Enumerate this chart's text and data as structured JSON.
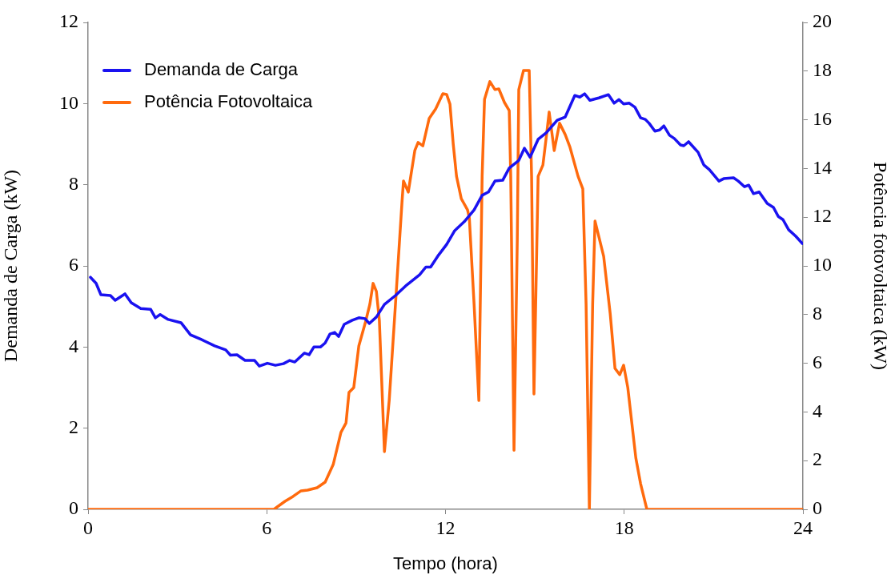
{
  "chart_data": {
    "type": "line",
    "xlabel": "Tempo (hora)",
    "ylabel": "Demanda de Carga (kW)",
    "y2label": "Potência fotovoltaica (kW)",
    "xlim": [
      0,
      24
    ],
    "xticks": [
      0,
      6,
      12,
      18,
      24
    ],
    "ylim": [
      0,
      12
    ],
    "yticks": [
      0,
      2,
      4,
      6,
      8,
      10,
      12
    ],
    "y2lim": [
      0,
      20
    ],
    "y2ticks": [
      0,
      2,
      4,
      6,
      8,
      10,
      12,
      14,
      16,
      18,
      20
    ],
    "grid": false,
    "legend": "top left",
    "marker": "none",
    "line_style": "solid",
    "series": [
      {
        "name": "Demanda de Carga",
        "color": "#1a12f0",
        "axis": "y",
        "x": [
          0.08,
          0.27,
          0.43,
          0.75,
          0.91,
          1.24,
          1.45,
          1.77,
          2.1,
          2.26,
          2.42,
          2.69,
          3.12,
          3.44,
          3.82,
          4.25,
          4.62,
          4.78,
          5.0,
          5.27,
          5.59,
          5.75,
          6.02,
          6.29,
          6.56,
          6.77,
          6.94,
          7.26,
          7.42,
          7.58,
          7.8,
          7.96,
          8.12,
          8.28,
          8.41,
          8.6,
          8.87,
          9.09,
          9.3,
          9.44,
          9.68,
          9.95,
          10.32,
          10.7,
          11.13,
          11.34,
          11.5,
          11.77,
          12.04,
          12.31,
          12.63,
          12.96,
          13.23,
          13.44,
          13.66,
          13.92,
          14.14,
          14.46,
          14.65,
          14.84,
          15.11,
          15.38,
          15.75,
          16.02,
          16.34,
          16.51,
          16.67,
          16.85,
          17.15,
          17.47,
          17.66,
          17.82,
          17.98,
          18.17,
          18.36,
          18.55,
          18.71,
          18.84,
          19.03,
          19.19,
          19.33,
          19.52,
          19.68,
          19.89,
          20.0,
          20.16,
          20.48,
          20.67,
          20.86,
          21.18,
          21.34,
          21.67,
          21.83,
          22.04,
          22.18,
          22.34,
          22.53,
          22.8,
          23.01,
          23.17,
          23.33,
          23.52,
          23.76,
          23.98
        ],
        "values": [
          5.72,
          5.57,
          5.29,
          5.27,
          5.15,
          5.31,
          5.09,
          4.95,
          4.93,
          4.72,
          4.8,
          4.68,
          4.6,
          4.3,
          4.18,
          4.03,
          3.93,
          3.8,
          3.81,
          3.67,
          3.67,
          3.53,
          3.6,
          3.55,
          3.59,
          3.67,
          3.63,
          3.85,
          3.81,
          4.0,
          4.0,
          4.1,
          4.32,
          4.36,
          4.26,
          4.56,
          4.66,
          4.72,
          4.7,
          4.58,
          4.74,
          5.05,
          5.27,
          5.53,
          5.78,
          5.97,
          5.97,
          6.27,
          6.53,
          6.87,
          7.09,
          7.38,
          7.74,
          7.82,
          8.09,
          8.11,
          8.41,
          8.6,
          8.9,
          8.68,
          9.12,
          9.28,
          9.59,
          9.67,
          10.2,
          10.16,
          10.24,
          10.08,
          10.14,
          10.22,
          10.01,
          10.1,
          9.99,
          10.01,
          9.91,
          9.65,
          9.61,
          9.51,
          9.32,
          9.35,
          9.45,
          9.22,
          9.14,
          8.98,
          8.96,
          9.06,
          8.8,
          8.49,
          8.37,
          8.09,
          8.15,
          8.17,
          8.09,
          7.95,
          7.99,
          7.78,
          7.82,
          7.54,
          7.44,
          7.22,
          7.14,
          6.89,
          6.73,
          6.55
        ]
      },
      {
        "name": "Potência Fotovoltaica",
        "color": "#ff6a0d",
        "axis": "y2",
        "x": [
          0,
          6.24,
          6.61,
          6.88,
          7.15,
          7.37,
          7.69,
          7.96,
          8.23,
          8.49,
          8.66,
          8.76,
          8.92,
          9.09,
          9.3,
          9.46,
          9.57,
          9.68,
          9.78,
          9.95,
          10.11,
          10.32,
          10.54,
          10.59,
          10.75,
          10.97,
          11.08,
          11.24,
          11.45,
          11.67,
          11.91,
          12.04,
          12.15,
          12.26,
          12.37,
          12.53,
          12.74,
          12.8,
          12.96,
          13.12,
          13.23,
          13.31,
          13.49,
          13.66,
          13.79,
          13.98,
          14.14,
          14.19,
          14.3,
          14.41,
          14.46,
          14.62,
          14.81,
          14.89,
          14.97,
          15.11,
          15.27,
          15.38,
          15.48,
          15.65,
          15.83,
          16.02,
          16.18,
          16.45,
          16.61,
          16.72,
          16.83,
          16.94,
          17.02,
          17.31,
          17.53,
          17.69,
          17.85,
          17.98,
          18.12,
          18.39,
          18.55,
          18.76,
          24
        ],
        "values": [
          0,
          0,
          0.33,
          0.53,
          0.76,
          0.79,
          0.89,
          1.12,
          1.84,
          3.16,
          3.55,
          4.8,
          5.0,
          6.71,
          7.63,
          8.42,
          9.28,
          8.95,
          7.76,
          2.37,
          4.47,
          8.42,
          12.63,
          13.49,
          13.03,
          14.74,
          15.07,
          14.93,
          16.05,
          16.45,
          17.07,
          17.04,
          16.64,
          15.0,
          13.68,
          12.76,
          12.3,
          11.97,
          8.42,
          4.47,
          13.68,
          16.84,
          17.57,
          17.24,
          17.27,
          16.71,
          16.38,
          13.68,
          2.43,
          11.05,
          17.24,
          18.03,
          18.03,
          13.68,
          4.74,
          13.68,
          14.14,
          15.26,
          16.32,
          14.74,
          15.86,
          15.39,
          14.87,
          13.68,
          13.16,
          8.42,
          0,
          8.42,
          11.84,
          10.39,
          8.03,
          5.79,
          5.53,
          5.92,
          5.0,
          2.11,
          1.05,
          0,
          0
        ]
      }
    ]
  }
}
